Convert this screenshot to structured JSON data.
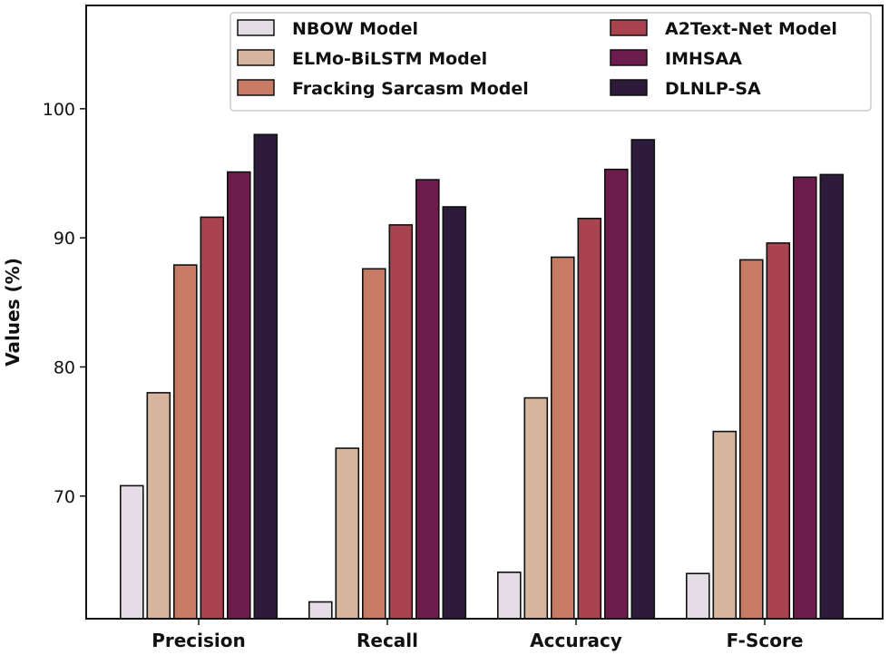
{
  "chart_data": {
    "type": "bar",
    "title": "",
    "xlabel": "",
    "ylabel": "Values (%)",
    "ylim": [
      60.5,
      108
    ],
    "yticks": [
      70,
      80,
      90,
      100
    ],
    "grid": false,
    "legend_position": "top-right",
    "categories": [
      "Precision",
      "Recall",
      "Accuracy",
      "F-Score"
    ],
    "series": [
      {
        "name": "NBOW Model",
        "color": "#e5dde6",
        "values": [
          70.8,
          61.8,
          64.1,
          64.0
        ]
      },
      {
        "name": "ELMo-BiLSTM Model",
        "color": "#d6b59e",
        "values": [
          78.0,
          73.7,
          77.6,
          75.0
        ]
      },
      {
        "name": "Fracking Sarcasm Model",
        "color": "#c97a63",
        "values": [
          87.9,
          87.6,
          88.5,
          88.3
        ]
      },
      {
        "name": "A2Text-Net Model",
        "color": "#a8434f",
        "values": [
          91.6,
          91.0,
          91.5,
          89.6
        ]
      },
      {
        "name": "IMHSAA",
        "color": "#6d1c4e",
        "values": [
          95.1,
          94.5,
          95.3,
          94.7
        ]
      },
      {
        "name": "DLNLP-SA",
        "color": "#2e1a3a",
        "values": [
          98.0,
          92.4,
          97.6,
          94.9
        ]
      }
    ]
  }
}
